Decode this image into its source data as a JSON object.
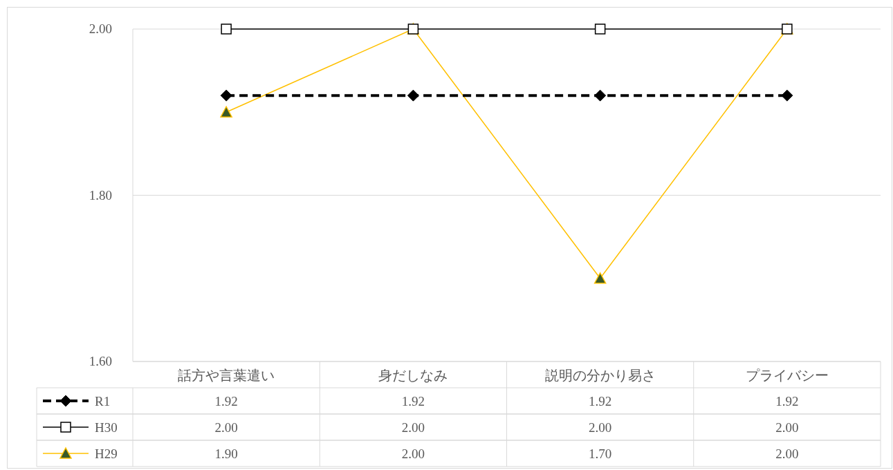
{
  "chart_data": {
    "type": "line",
    "categories": [
      "話方や言葉遣い",
      "身だしなみ",
      "説明の分かり易さ",
      "プライバシー"
    ],
    "series": [
      {
        "name": "R1",
        "color": "#000000",
        "values": [
          1.92,
          1.92,
          1.92,
          1.92
        ],
        "value_labels": [
          "1.92",
          "1.92",
          "1.92",
          "1.92"
        ],
        "marker": "diamond",
        "line_style": "dashed"
      },
      {
        "name": "H30",
        "color": "#000000",
        "values": [
          2.0,
          2.0,
          2.0,
          2.0
        ],
        "value_labels": [
          "2.00",
          "2.00",
          "2.00",
          "2.00"
        ],
        "marker": "square",
        "line_style": "solid"
      },
      {
        "name": "H29",
        "color": "#ffc000",
        "values": [
          1.9,
          2.0,
          1.7,
          2.0
        ],
        "value_labels": [
          "1.90",
          "2.00",
          "1.70",
          "2.00"
        ],
        "marker": "triangle",
        "line_style": "solid"
      }
    ],
    "ylim": [
      1.6,
      2.0
    ],
    "yticks": [
      {
        "value": 1.6,
        "label": "1.60"
      },
      {
        "value": 1.8,
        "label": "1.80"
      },
      {
        "value": 2.0,
        "label": "2.00"
      }
    ],
    "grid": "y",
    "legend": "bottom"
  }
}
